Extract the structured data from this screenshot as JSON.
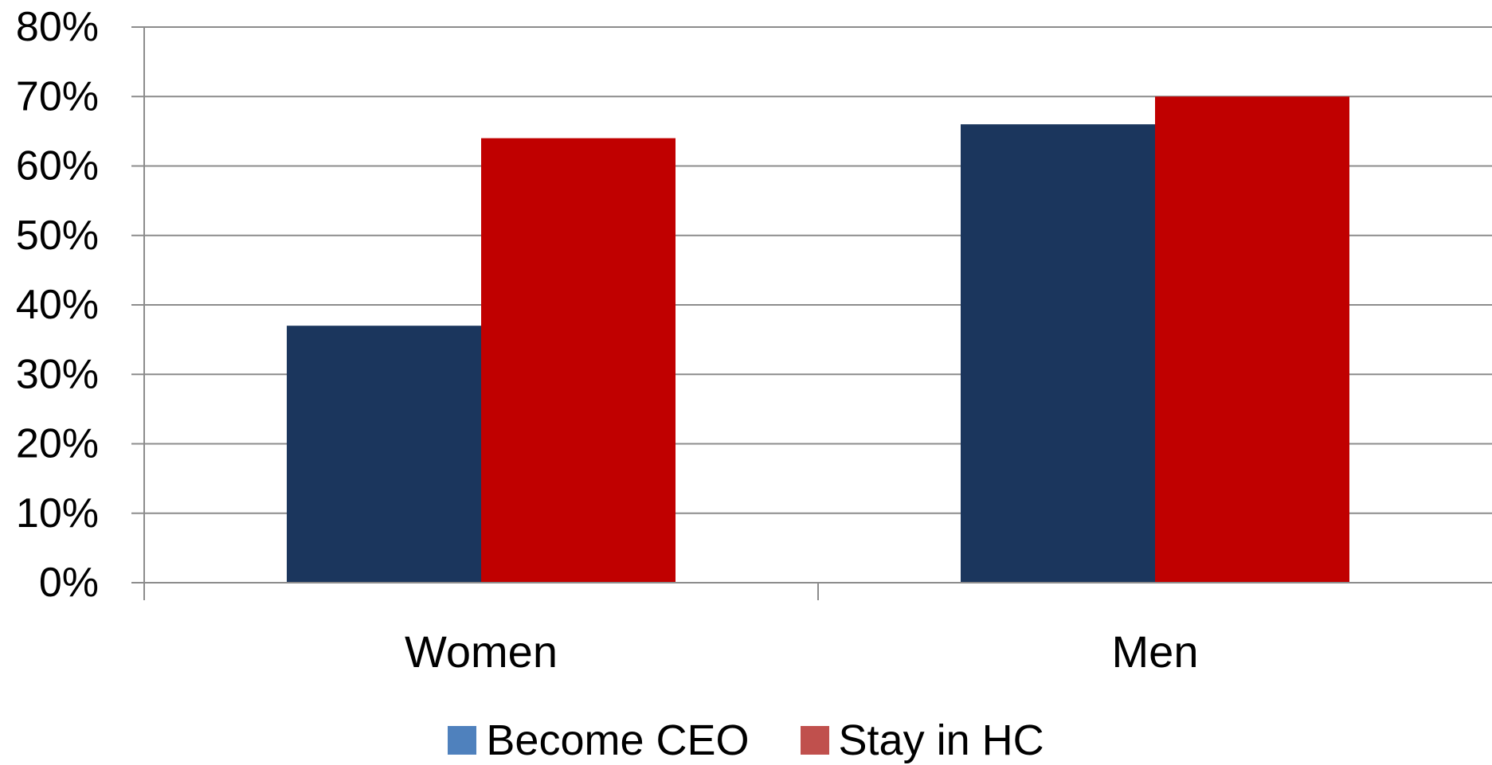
{
  "chart_data": {
    "type": "bar",
    "categories": [
      "Women",
      "Men"
    ],
    "series": [
      {
        "name": "Become CEO",
        "values": [
          37,
          66
        ],
        "color": "#1b365d",
        "legend_color": "#4f81bd"
      },
      {
        "name": "Stay in HC",
        "values": [
          64,
          70
        ],
        "color": "#c00000",
        "legend_color": "#c0504d"
      }
    ],
    "y_ticks": [
      0,
      10,
      20,
      30,
      40,
      50,
      60,
      70,
      80
    ],
    "y_tick_labels": [
      "0%",
      "10%",
      "20%",
      "30%",
      "40%",
      "50%",
      "60%",
      "70%",
      "80%"
    ],
    "ylim": [
      0,
      80
    ],
    "grid": true,
    "legend_position": "bottom",
    "title": "",
    "xlabel": "",
    "ylabel": ""
  }
}
